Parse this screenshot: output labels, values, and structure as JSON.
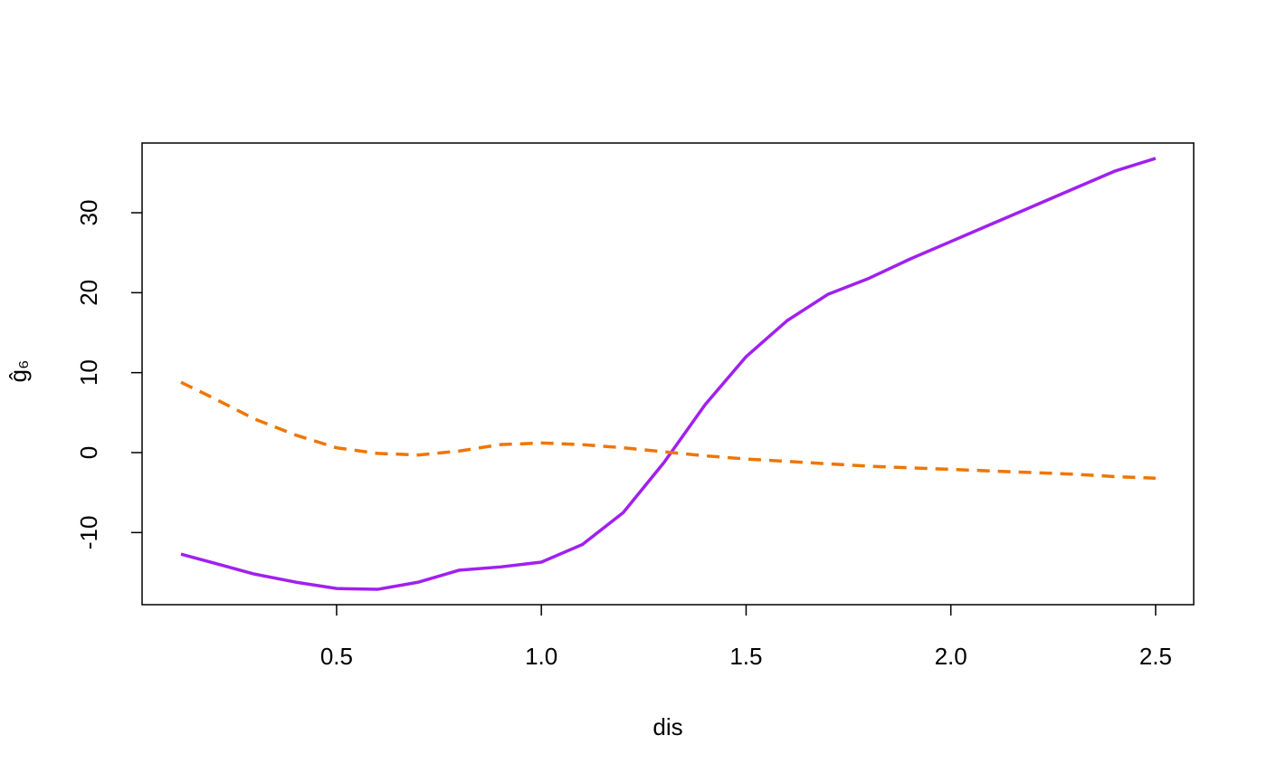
{
  "chart_data": {
    "type": "line",
    "xlabel": "dis",
    "ylabel": "ĝ₆",
    "x": [
      0.12,
      0.2,
      0.3,
      0.4,
      0.5,
      0.6,
      0.7,
      0.8,
      0.9,
      1.0,
      1.1,
      1.2,
      1.3,
      1.4,
      1.5,
      1.6,
      1.7,
      1.8,
      1.9,
      2.0,
      2.1,
      2.2,
      2.3,
      2.4,
      2.5
    ],
    "series": [
      {
        "color": "#a020f0",
        "dash": "solid",
        "values": [
          -12.7,
          -13.8,
          -15.2,
          -16.2,
          -17.0,
          -17.1,
          -16.2,
          -14.7,
          -14.3,
          -13.7,
          -11.5,
          -7.5,
          -1.2,
          6,
          12,
          16.5,
          19.8,
          21.8,
          24.2,
          26.4,
          28.6,
          30.8,
          33.0,
          35.2,
          36.8
        ]
      },
      {
        "color": "#ee7600",
        "dash": "dashed",
        "values": [
          8.8,
          6.8,
          4.2,
          2.2,
          0.6,
          -0.1,
          -0.3,
          0.2,
          1.0,
          1.2,
          1.0,
          0.6,
          0.1,
          -0.4,
          -0.8,
          -1.1,
          -1.4,
          -1.7,
          -1.9,
          -2.1,
          -2.3,
          -2.5,
          -2.7,
          -3.0,
          -3.2
        ]
      }
    ],
    "xlim": [
      0.025,
      2.593
    ],
    "ylim": [
      -19.02,
      38.72
    ],
    "xticks": [
      0.5,
      {
        "value": 1,
        "label": "1.0"
      },
      1.5,
      {
        "value": 2,
        "label": "2.0"
      },
      2.5
    ],
    "yticks": [
      -10,
      0,
      10,
      20,
      30
    ]
  }
}
